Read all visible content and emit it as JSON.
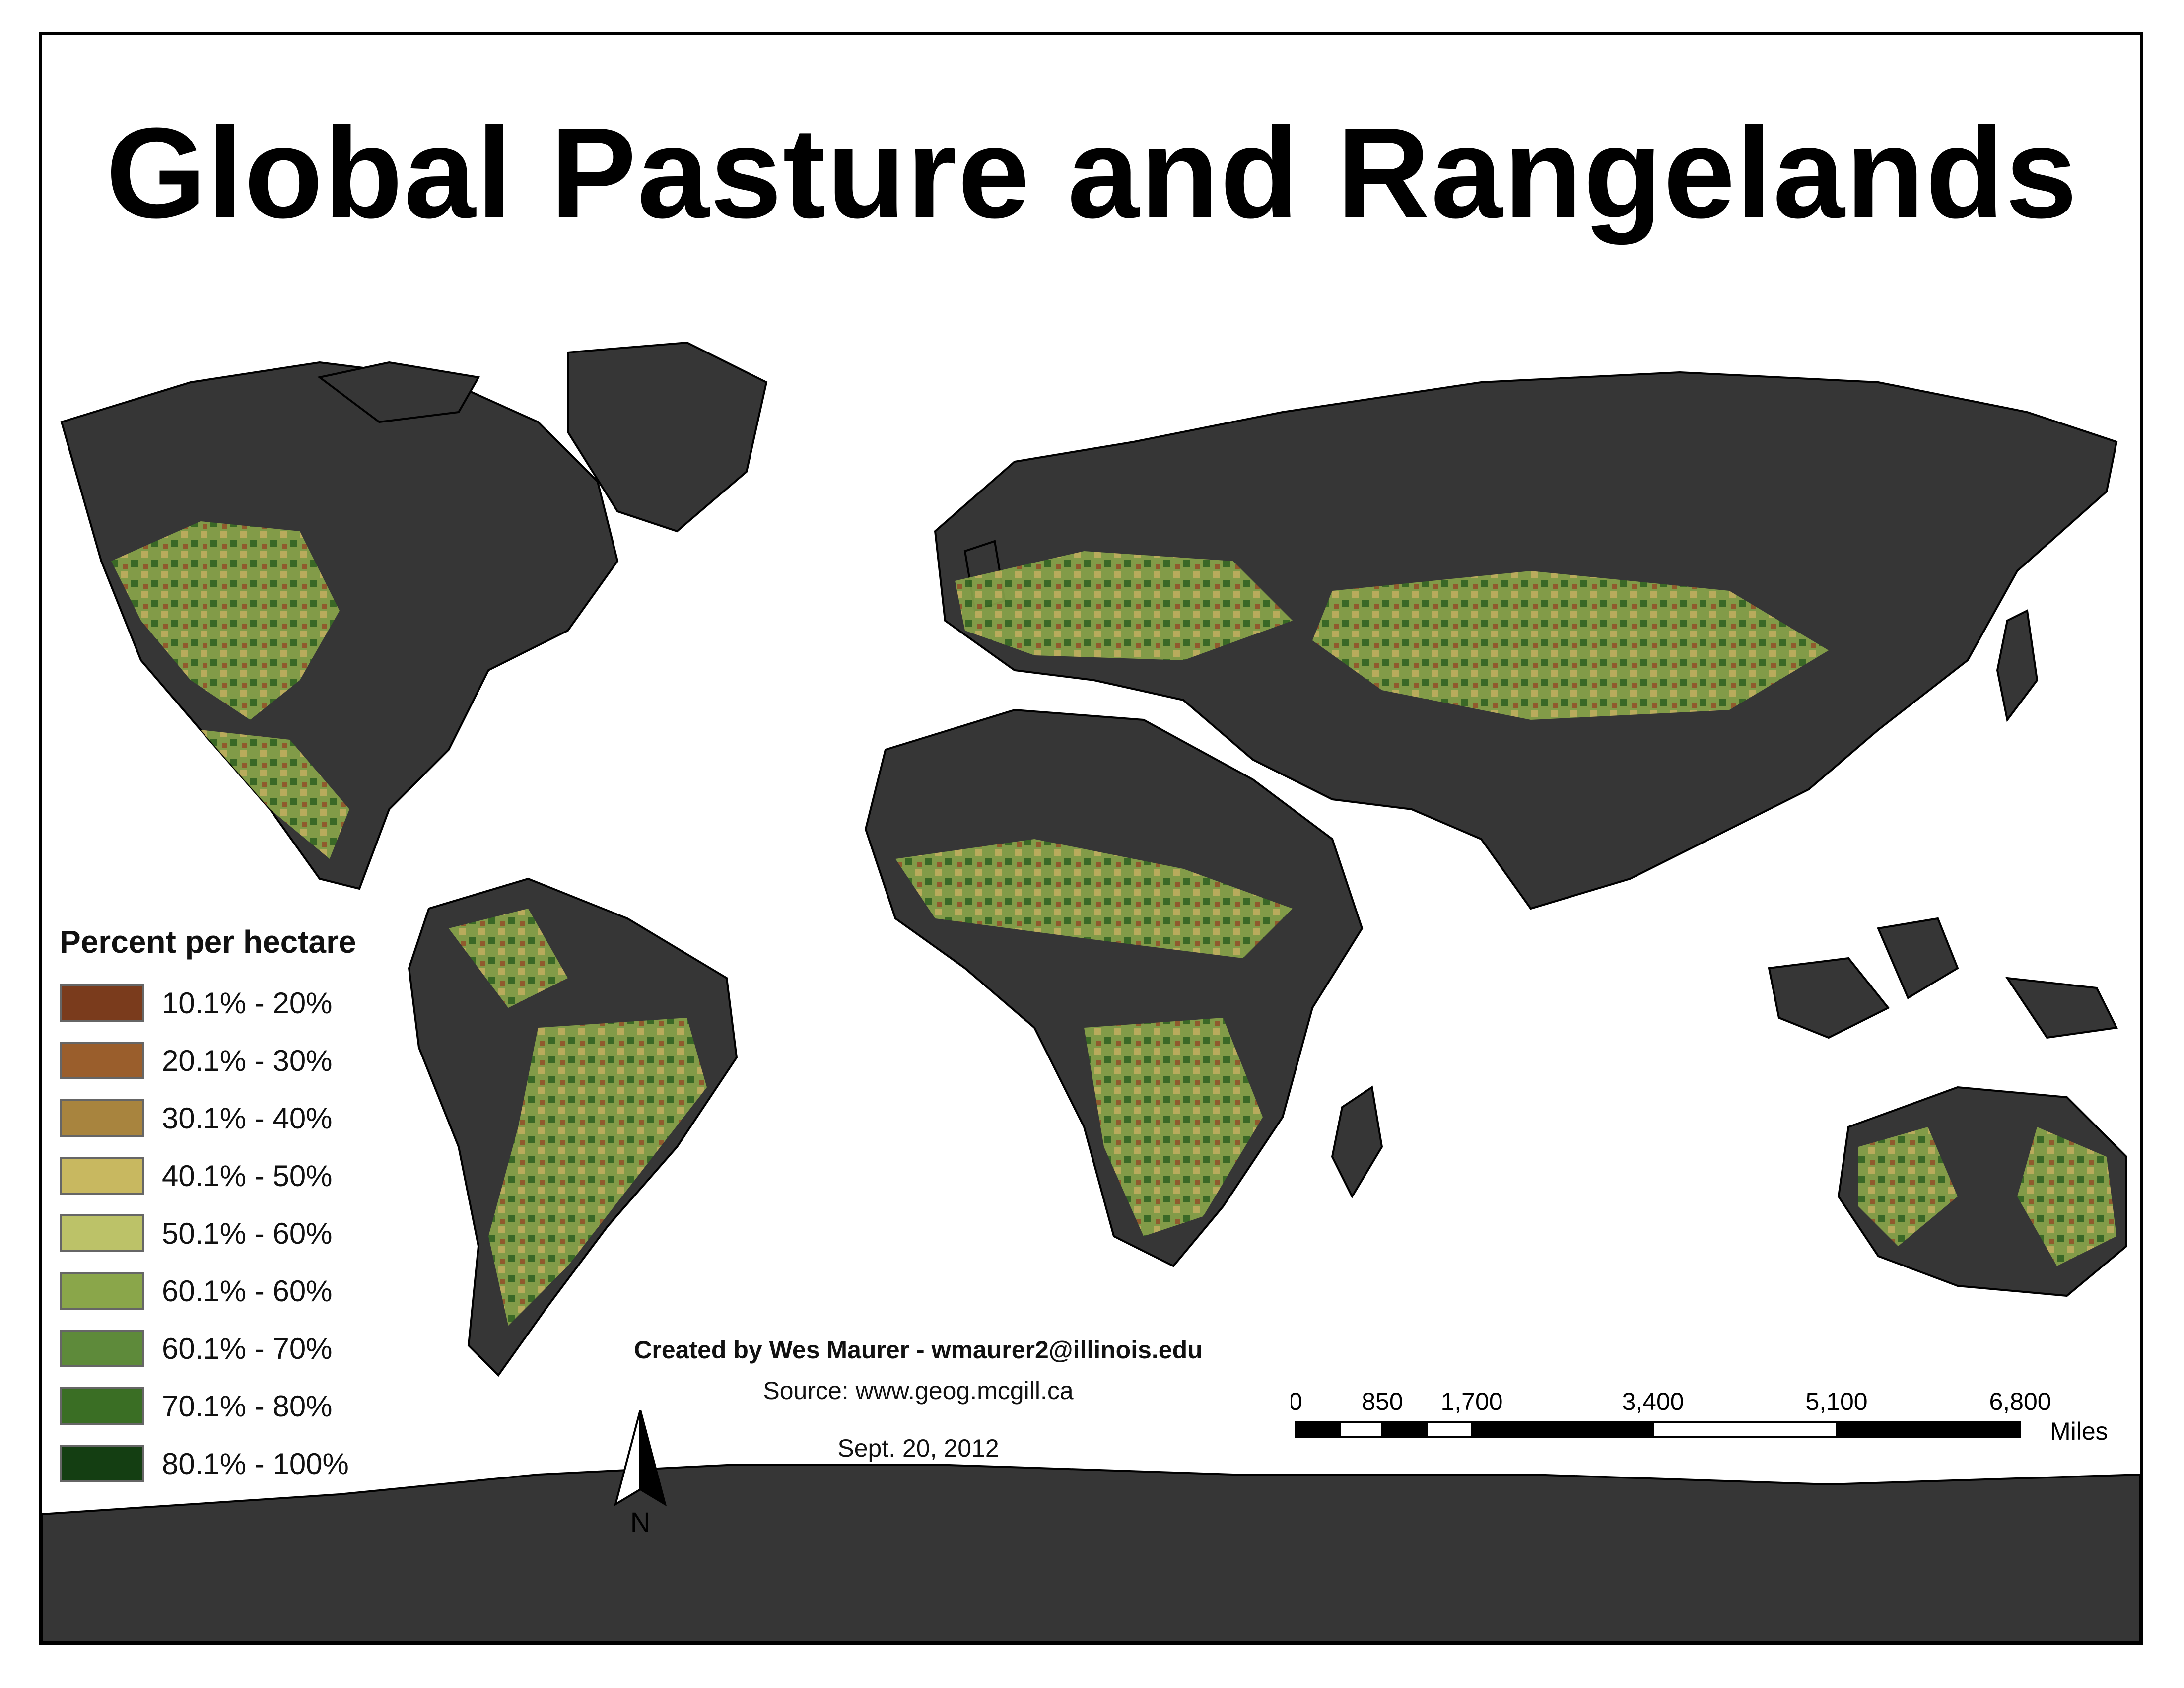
{
  "title": "Global Pasture and Rangelands",
  "legend": {
    "title": "Percent per hectare",
    "items": [
      {
        "label": "10.1% - 20%",
        "color": "#7a3b1c"
      },
      {
        "label": "20.1% - 30%",
        "color": "#9a5e2c"
      },
      {
        "label": "30.1% - 40%",
        "color": "#a8843e"
      },
      {
        "label": "40.1% - 50%",
        "color": "#c8b860"
      },
      {
        "label": "50.1% - 60%",
        "color": "#bcc268"
      },
      {
        "label": "60.1% - 60%",
        "color": "#8aa64a"
      },
      {
        "label": "60.1% - 70%",
        "color": "#5e8a3a"
      },
      {
        "label": "70.1% - 80%",
        "color": "#3a6e24"
      },
      {
        "label": "80.1% - 100%",
        "color": "#143e12"
      }
    ]
  },
  "credits": {
    "author": "Created by Wes Maurer - wmaurer2@illinois.edu",
    "source": "Source: www.geog.mcgill.ca",
    "date": "Sept. 20, 2012"
  },
  "north_arrow": {
    "label": "N"
  },
  "scale_bar": {
    "ticks": [
      "0",
      "850",
      "1,700",
      "3,400",
      "5,100",
      "6,800"
    ],
    "unit": "Miles"
  },
  "colors": {
    "land": "#363636",
    "ocean": "#ffffff",
    "border": "#000000"
  }
}
